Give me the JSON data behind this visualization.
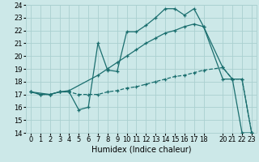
{
  "xlabel": "Humidex (Indice chaleur)",
  "bg_color": "#cce8e8",
  "grid_color": "#aad0d0",
  "line_color": "#1a6e6e",
  "xlim": [
    -0.5,
    23.5
  ],
  "ylim": [
    14,
    24
  ],
  "xticks": [
    0,
    1,
    2,
    3,
    4,
    5,
    6,
    7,
    8,
    9,
    10,
    11,
    12,
    13,
    14,
    15,
    16,
    17,
    18,
    20,
    21,
    22,
    23
  ],
  "yticks": [
    14,
    15,
    16,
    17,
    18,
    19,
    20,
    21,
    22,
    23,
    24
  ],
  "line1_x": [
    0,
    1,
    2,
    3,
    4,
    5,
    6,
    7,
    8,
    9,
    10,
    11,
    12,
    13,
    14,
    15,
    16,
    17,
    18,
    20,
    21,
    22,
    23
  ],
  "line1_y": [
    17.2,
    17.0,
    17.0,
    17.2,
    17.2,
    15.8,
    16.0,
    21.0,
    18.9,
    18.8,
    21.9,
    21.9,
    22.4,
    23.0,
    23.7,
    23.7,
    23.2,
    23.7,
    22.3,
    19.1,
    18.2,
    18.2,
    14.0
  ],
  "line2_x": [
    0,
    2,
    3,
    4,
    7,
    8,
    9,
    10,
    11,
    12,
    13,
    14,
    15,
    16,
    17,
    18,
    20,
    21,
    22,
    23
  ],
  "line2_y": [
    17.2,
    17.0,
    17.2,
    17.3,
    18.5,
    19.0,
    19.5,
    20.0,
    20.5,
    21.0,
    21.4,
    21.8,
    22.0,
    22.3,
    22.5,
    22.3,
    18.2,
    18.2,
    14.0,
    14.0
  ],
  "line3_x": [
    0,
    1,
    2,
    3,
    4,
    5,
    6,
    7,
    8,
    9,
    10,
    11,
    12,
    13,
    14,
    15,
    16,
    17,
    18,
    20,
    21,
    22,
    23
  ],
  "line3_y": [
    17.2,
    17.0,
    17.0,
    17.2,
    17.2,
    17.0,
    17.0,
    17.0,
    17.2,
    17.3,
    17.5,
    17.6,
    17.8,
    18.0,
    18.2,
    18.4,
    18.5,
    18.7,
    18.9,
    19.1,
    18.2,
    18.2,
    14.0
  ],
  "fontsize_axis": 7,
  "fontsize_tick": 6
}
